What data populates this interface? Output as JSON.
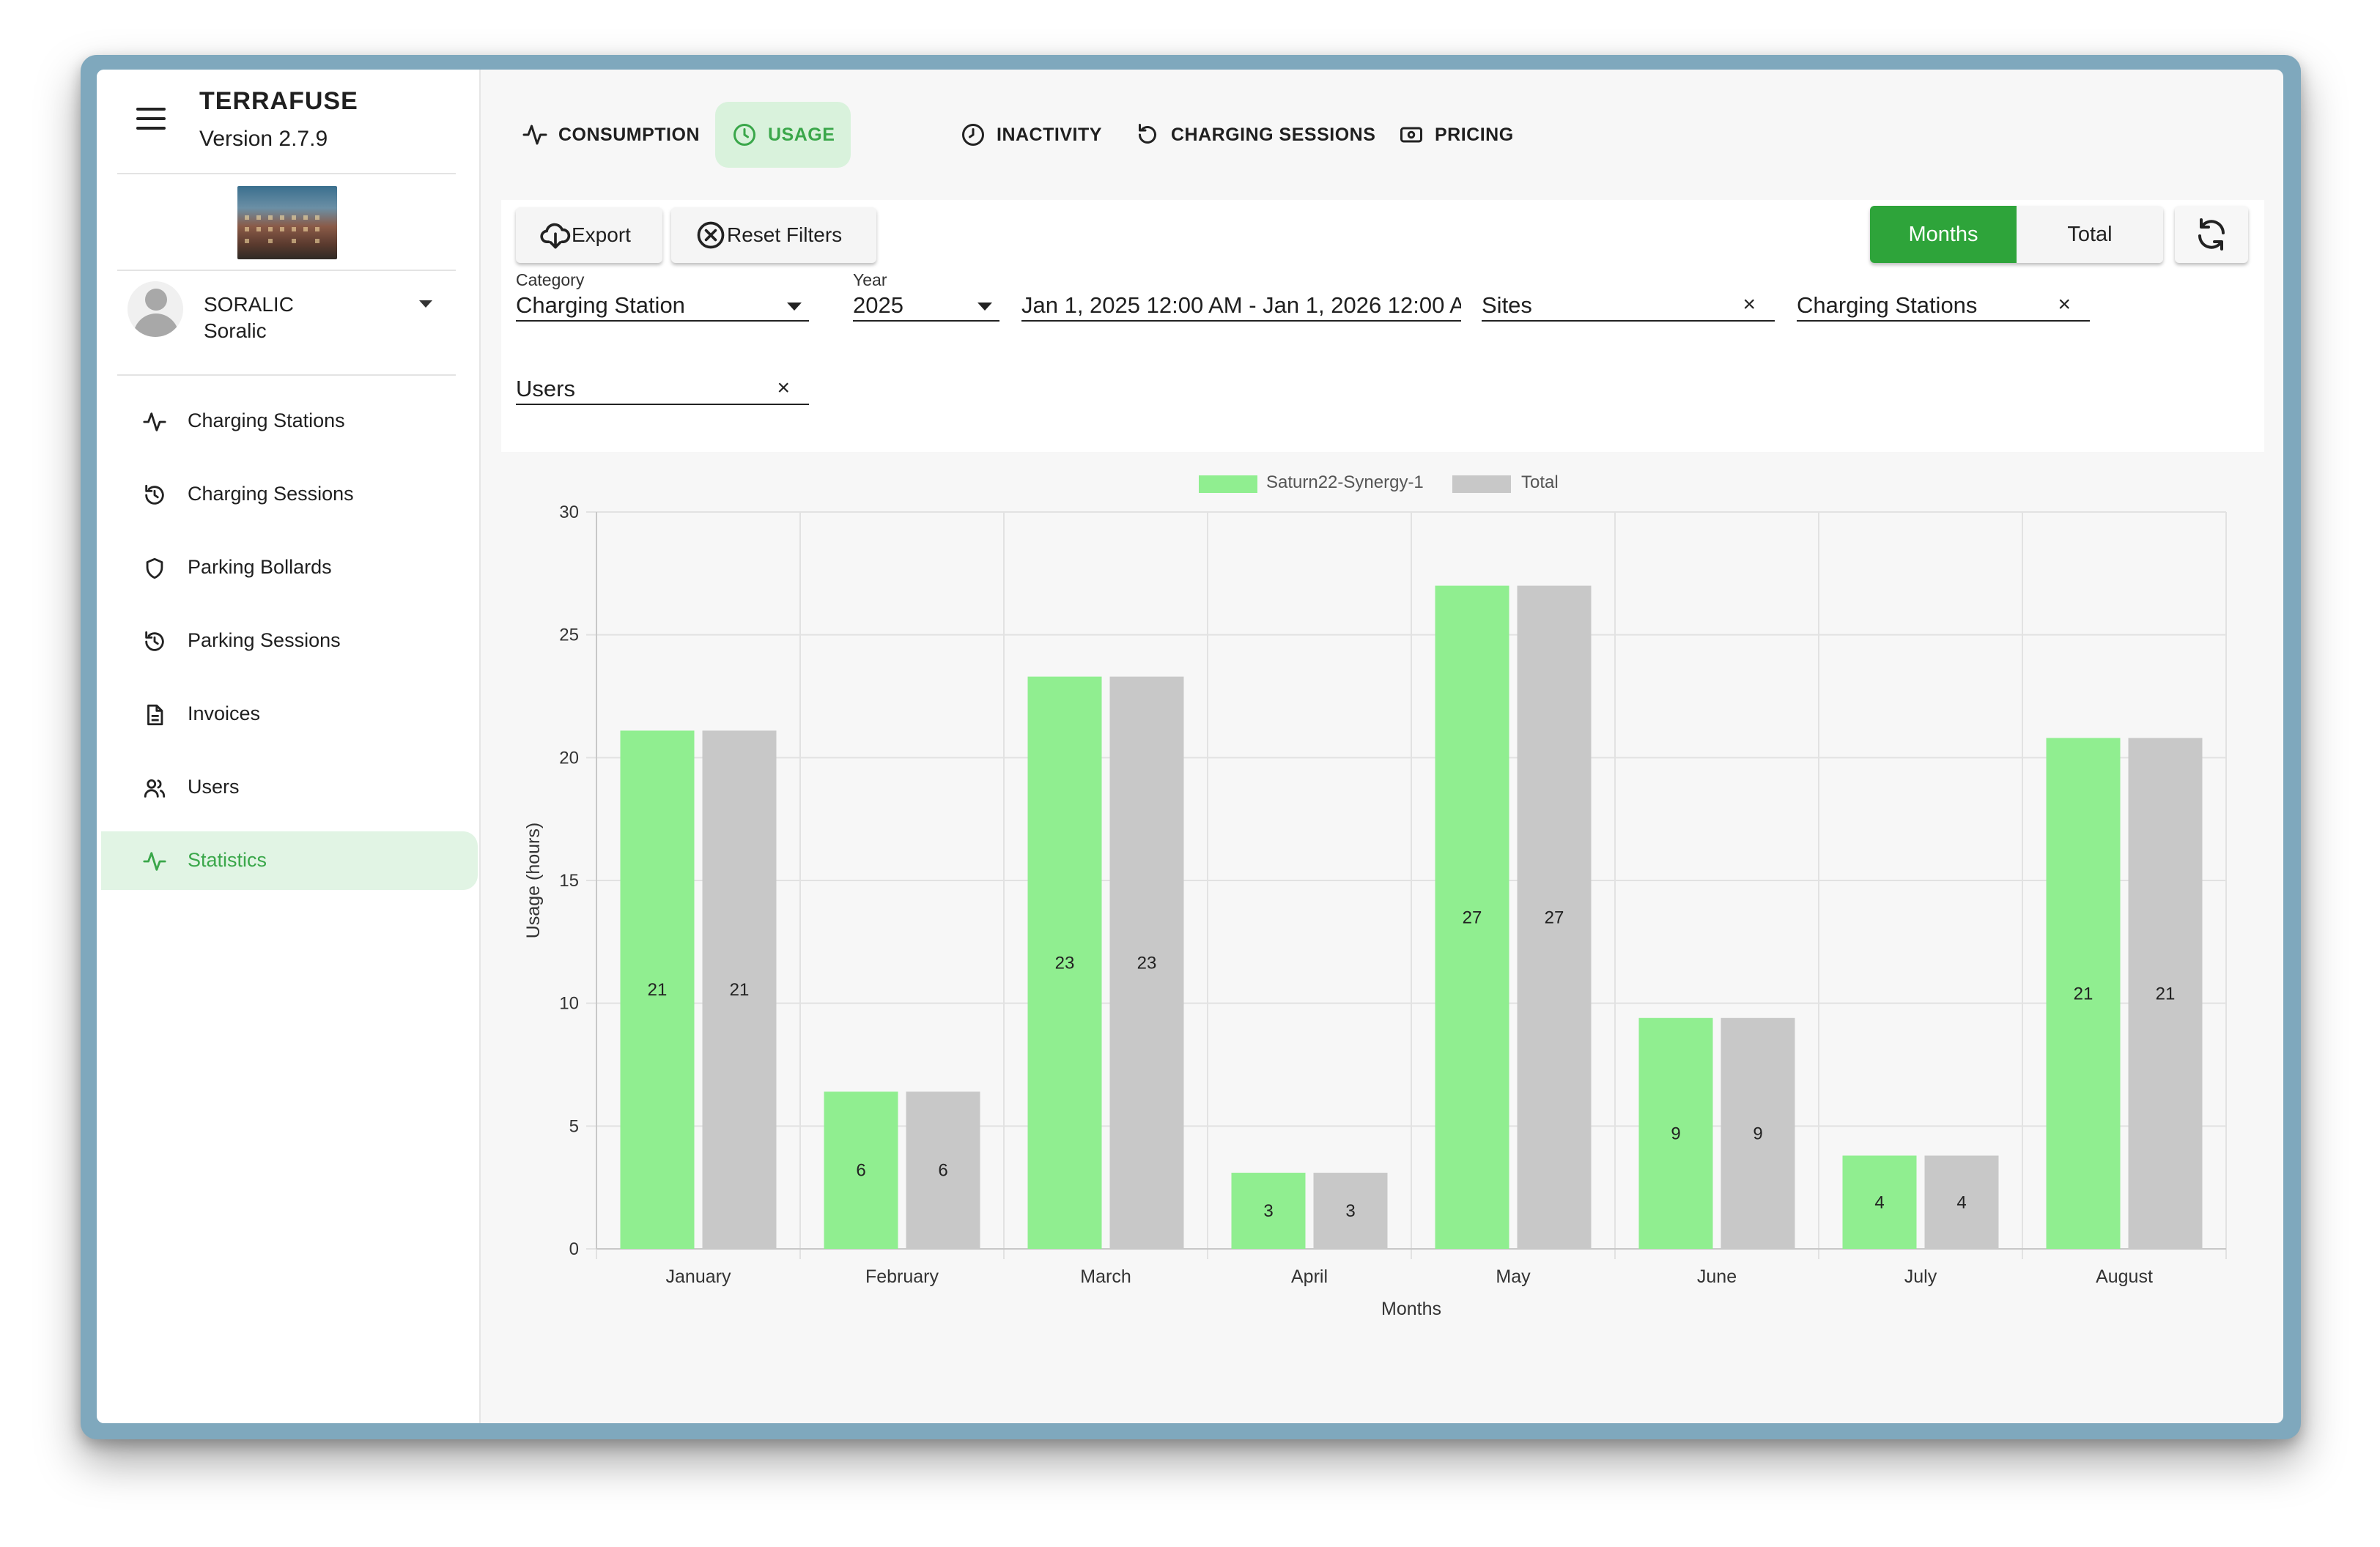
{
  "app": {
    "title": "TERRAFUSE",
    "version": "Version 2.7.9"
  },
  "user": {
    "org": "SORALIC",
    "name": "Soralic"
  },
  "nav": [
    {
      "label": "Charging Stations",
      "icon": "activity-icon"
    },
    {
      "label": "Charging Sessions",
      "icon": "history-icon"
    },
    {
      "label": "Parking Bollards",
      "icon": "shield-icon"
    },
    {
      "label": "Parking Sessions",
      "icon": "history-icon"
    },
    {
      "label": "Invoices",
      "icon": "document-icon"
    },
    {
      "label": "Users",
      "icon": "users-icon"
    },
    {
      "label": "Statistics",
      "icon": "activity-icon"
    }
  ],
  "tabs": [
    {
      "label": "CONSUMPTION",
      "icon": "activity-icon"
    },
    {
      "label": "USAGE",
      "icon": "clock-icon"
    },
    {
      "label": "INACTIVITY",
      "icon": "timer-icon"
    },
    {
      "label": "CHARGING SESSIONS",
      "icon": "reload-icon"
    },
    {
      "label": "PRICING",
      "icon": "cash-icon"
    }
  ],
  "toolbar": {
    "export_label": "Export",
    "reset_label": "Reset Filters",
    "months_label": "Months",
    "total_label": "Total"
  },
  "filters": {
    "category_caption": "Category",
    "category_value": "Charging Station",
    "year_caption": "Year",
    "year_value": "2025",
    "date_range": "Jan 1, 2025 12:00 AM - Jan 1, 2026 12:00 A",
    "sites": "Sites",
    "stations": "Charging Stations",
    "users": "Users",
    "clear_symbol": "×"
  },
  "colors": {
    "primary": "#2ea43a",
    "series1": "#90ee90",
    "series2": "#c8c8c8"
  },
  "chart_data": {
    "type": "bar",
    "title": "",
    "xlabel": "Months",
    "ylabel": "Usage (hours)",
    "ylim": [
      0,
      30
    ],
    "yticks": [
      0,
      5,
      10,
      15,
      20,
      25,
      30
    ],
    "categories": [
      "January",
      "February",
      "March",
      "April",
      "May",
      "June",
      "July",
      "August"
    ],
    "series": [
      {
        "name": "Saturn22-Synergy-1",
        "values": [
          21.1,
          6.4,
          23.3,
          3.1,
          27.0,
          9.4,
          3.8,
          20.8
        ],
        "labels": [
          "21",
          "6",
          "23",
          "3",
          "27",
          "9",
          "4",
          "21"
        ]
      },
      {
        "name": "Total",
        "values": [
          21.1,
          6.4,
          23.3,
          3.1,
          27.0,
          9.4,
          3.8,
          20.8
        ],
        "labels": [
          "21",
          "6",
          "23",
          "3",
          "27",
          "9",
          "4",
          "21"
        ]
      }
    ]
  }
}
